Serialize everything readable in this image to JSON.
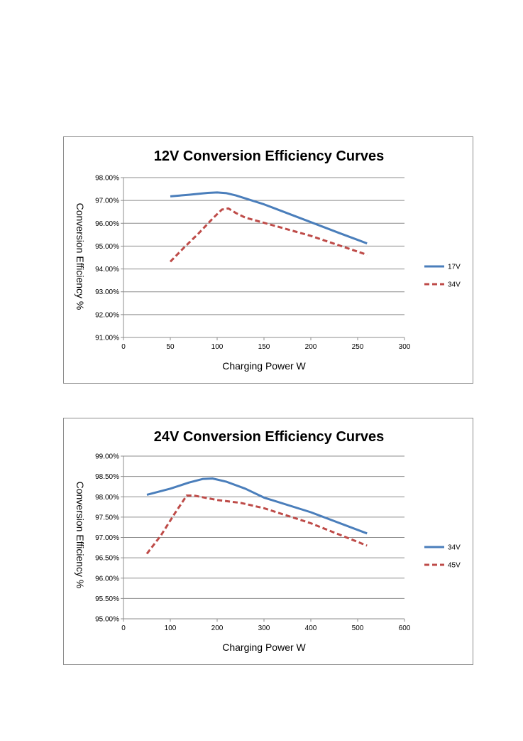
{
  "chart_data": [
    {
      "type": "line",
      "title": "12V Conversion Efficiency Curves",
      "xlabel": "Charging Power W",
      "ylabel": "Conversion Efficiency %",
      "xlim": [
        0,
        300
      ],
      "ylim": [
        91.0,
        98.0
      ],
      "x_ticks": [
        "0",
        "50",
        "100",
        "150",
        "200",
        "250",
        "300"
      ],
      "y_ticks": [
        "98.00%",
        "97.00%",
        "96.00%",
        "95.00%",
        "94.00%",
        "93.00%",
        "92.00%",
        "91.00%"
      ],
      "grid": "horizontal",
      "legend": "right",
      "series": [
        {
          "name": "17V",
          "color": "#4a7ebb",
          "style": "solid",
          "points": [
            [
              50,
              97.18
            ],
            [
              70,
              97.25
            ],
            [
              90,
              97.33
            ],
            [
              100,
              97.35
            ],
            [
              110,
              97.32
            ],
            [
              120,
              97.22
            ],
            [
              150,
              96.83
            ],
            [
              200,
              96.05
            ],
            [
              230,
              95.58
            ],
            [
              260,
              95.12
            ]
          ]
        },
        {
          "name": "34V",
          "color": "#be4b48",
          "style": "dashed",
          "points": [
            [
              50,
              94.32
            ],
            [
              65,
              94.95
            ],
            [
              80,
              95.55
            ],
            [
              95,
              96.2
            ],
            [
              105,
              96.6
            ],
            [
              112,
              96.65
            ],
            [
              120,
              96.45
            ],
            [
              130,
              96.25
            ],
            [
              150,
              96.02
            ],
            [
              200,
              95.45
            ],
            [
              260,
              94.62
            ]
          ]
        }
      ]
    },
    {
      "type": "line",
      "title": "24V Conversion Efficiency Curves",
      "xlabel": "Charging Power W",
      "ylabel": "Conversion Efficiency %",
      "xlim": [
        0,
        600
      ],
      "ylim": [
        95.0,
        99.0
      ],
      "x_ticks": [
        "0",
        "100",
        "200",
        "300",
        "400",
        "500",
        "600"
      ],
      "y_ticks": [
        "99.00%",
        "98.50%",
        "98.00%",
        "97.50%",
        "97.00%",
        "96.50%",
        "96.00%",
        "95.50%",
        "95.00%"
      ],
      "grid": "horizontal",
      "legend": "right",
      "series": [
        {
          "name": "34V",
          "color": "#4a7ebb",
          "style": "solid",
          "points": [
            [
              50,
              98.05
            ],
            [
              100,
              98.2
            ],
            [
              140,
              98.35
            ],
            [
              170,
              98.44
            ],
            [
              190,
              98.45
            ],
            [
              220,
              98.37
            ],
            [
              260,
              98.2
            ],
            [
              300,
              97.98
            ],
            [
              400,
              97.62
            ],
            [
              520,
              97.1
            ]
          ]
        },
        {
          "name": "45V",
          "color": "#be4b48",
          "style": "dashed",
          "points": [
            [
              50,
              96.6
            ],
            [
              80,
              97.05
            ],
            [
              110,
              97.6
            ],
            [
              135,
              98.03
            ],
            [
              150,
              98.03
            ],
            [
              200,
              97.92
            ],
            [
              250,
              97.85
            ],
            [
              300,
              97.72
            ],
            [
              400,
              97.35
            ],
            [
              520,
              96.8
            ]
          ]
        }
      ]
    }
  ]
}
